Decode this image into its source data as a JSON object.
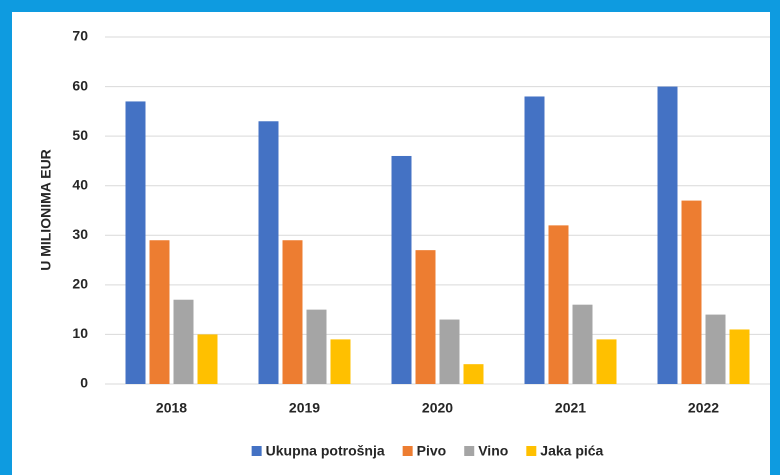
{
  "chart_data": {
    "type": "bar",
    "y_label": "U MILIONIMA EUR",
    "categories": [
      "2018",
      "2019",
      "2020",
      "2021",
      "2022"
    ],
    "series": [
      {
        "name": "Ukupna potrošnja",
        "color": "#4472c4",
        "values": [
          57,
          53,
          46,
          58,
          60
        ]
      },
      {
        "name": "Pivo",
        "color": "#ed7d31",
        "values": [
          29,
          29,
          27,
          32,
          37
        ]
      },
      {
        "name": "Vino",
        "color": "#a5a5a5",
        "values": [
          17,
          15,
          13,
          16,
          14
        ]
      },
      {
        "name": "Jaka pića",
        "color": "#ffc000",
        "values": [
          10,
          9,
          4,
          9,
          11
        ]
      }
    ],
    "ylim": [
      0,
      70
    ],
    "yticks": [
      0,
      10,
      20,
      30,
      40,
      50,
      60,
      70
    ],
    "grid": true,
    "legend": "bottom"
  }
}
